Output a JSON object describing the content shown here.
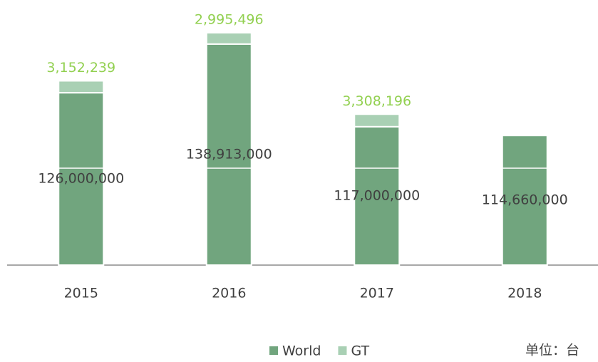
{
  "chart_data": {
    "type": "stacked_bar",
    "categories": [
      "2015",
      "2016",
      "2017",
      "2018"
    ],
    "series": [
      {
        "name": "World",
        "color": "#71a57e",
        "values": [
          126000000,
          138913000,
          117000000,
          114660000
        ],
        "value_labels": [
          "126,000,000",
          "138,913,000",
          "117,000,000",
          "114,660,000"
        ],
        "label_color": "#404040"
      },
      {
        "name": "GT",
        "color": "#a9d0b4",
        "values": [
          3152239,
          2995496,
          3308196,
          null
        ],
        "value_labels": [
          "3,152,239",
          "2,995,496",
          "3,308,196",
          null
        ],
        "label_color": "#92d050"
      }
    ],
    "ylim": [
      106000000,
      147000000
    ],
    "axis_break": true,
    "legend": "bottom",
    "annotation": "单位：台"
  }
}
